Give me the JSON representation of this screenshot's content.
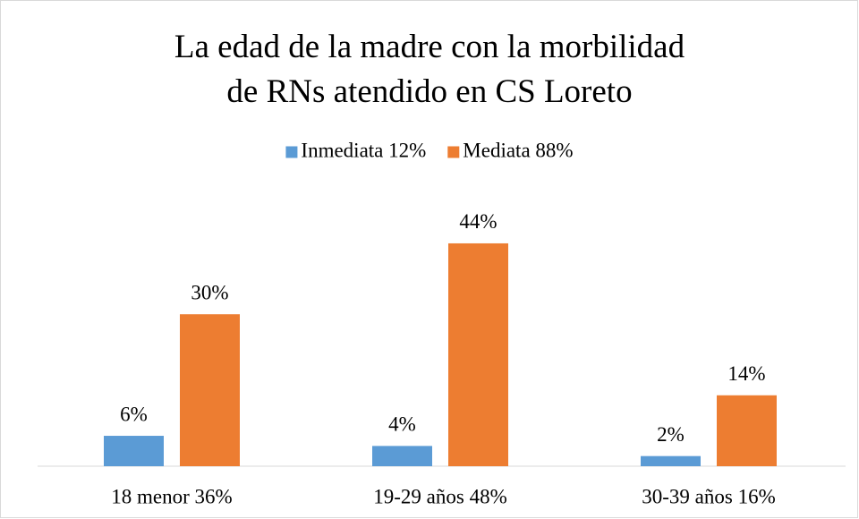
{
  "chart_data": {
    "type": "bar",
    "title": "La edad de la madre con la morbilidad de RNs atendido en CS Loreto",
    "categories": [
      "18 menor 36%",
      "19-29 años 48%",
      "30-39 años 16%"
    ],
    "series": [
      {
        "name": "Inmediata 12%",
        "color": "#5b9bd5",
        "values": [
          6,
          4,
          2
        ],
        "value_labels": [
          "6%",
          "4%",
          "2%"
        ]
      },
      {
        "name": "Mediata 88%",
        "color": "#ed7d31",
        "values": [
          30,
          44,
          14
        ],
        "value_labels": [
          "30%",
          "44%",
          "14%"
        ]
      }
    ],
    "ylim": [
      0,
      50
    ],
    "legend": "top"
  }
}
